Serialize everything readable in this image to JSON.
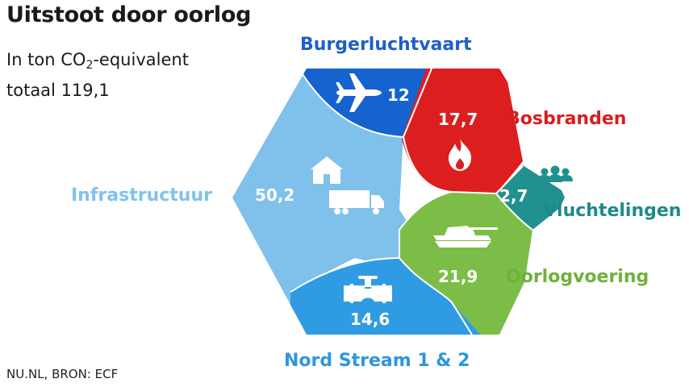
{
  "header": {
    "title": "Uitstoot door oorlog",
    "subtitle_prefix": "In ton CO",
    "subtitle_sub": "2",
    "subtitle_suffix": "-equivalent",
    "total": "totaal 119,1"
  },
  "source": "NU.NL, BRON: ECF",
  "chart_data": {
    "type": "treemap",
    "title": "Uitstoot door oorlog",
    "unit": "ton CO2-equivalent",
    "total": 119.1,
    "segments": [
      {
        "key": "burgerluchtvaart",
        "label": "Burgerluchtvaart",
        "value": 12,
        "value_label": "12",
        "icon": "airplane-icon",
        "color": "#1463cf",
        "label_color": "#1f5fc6"
      },
      {
        "key": "bosbranden",
        "label": "Bosbranden",
        "value": 17.7,
        "value_label": "17,7",
        "icon": "fire-icon",
        "color": "#dd1e1e",
        "label_color": "#d81e1e"
      },
      {
        "key": "vluchtelingen",
        "label": "Vluchtelingen",
        "value": 2.7,
        "value_label": "2,7",
        "icon": "people-icon",
        "color": "#21918f",
        "label_color": "#1e8a88"
      },
      {
        "key": "oorlogvoering",
        "label": "Oorlogvoering",
        "value": 21.9,
        "value_label": "21,9",
        "icon": "tank-icon",
        "color": "#7cbd47",
        "label_color": "#6fb13c"
      },
      {
        "key": "nordstream",
        "label": "Nord Stream 1 & 2",
        "value": 14.6,
        "value_label": "14,6",
        "icon": "pipeline-icon",
        "color": "#2f9be2",
        "label_color": "#2d96df"
      },
      {
        "key": "infrastructuur",
        "label": "Infrastructuur",
        "value": 50.2,
        "value_label": "50,2",
        "icon": "house-icon",
        "color": "#7fc1eb",
        "label_color": "#80c2ea"
      }
    ]
  }
}
